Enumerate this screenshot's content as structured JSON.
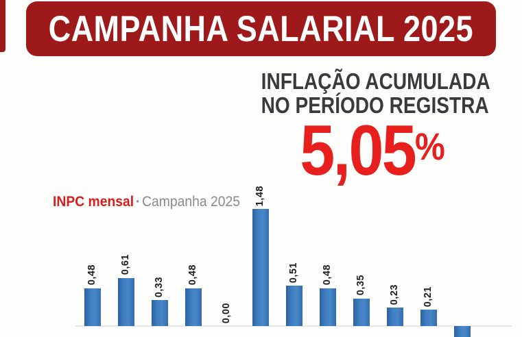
{
  "banner": {
    "title": "CAMPANHA SALARIAL 2025"
  },
  "headline": {
    "line1": "INFLAÇÃO ACUMULADA",
    "line2": "NO PERÍODO REGISTRA",
    "value": "5,05",
    "unit": "%"
  },
  "legend": {
    "series_name": "INPC mensal",
    "separator": "·",
    "period": "Campanha 2025"
  },
  "chart_data": {
    "type": "bar",
    "title": "INPC mensal · Campanha 2025",
    "series_name": "INPC mensal",
    "values": [
      0.48,
      0.61,
      0.33,
      0.48,
      0.0,
      1.48,
      0.51,
      0.48,
      0.35,
      0.23,
      0.21,
      -0.21
    ],
    "bar_labels": [
      "0,48",
      "0,61",
      "0,33",
      "0,48",
      "0,00",
      "1,48",
      "0,51",
      "0,48",
      "0,35",
      "0,23",
      "0,21",
      ""
    ],
    "x_axis_labels_visible": false,
    "last_bar_clipped_at_bottom": true,
    "ylim": [
      -0.25,
      1.6
    ],
    "grid": false,
    "legend_position": "top-left",
    "bar_color": "#3f7fc2",
    "accumulated_headline_value_pct": 5.05
  },
  "colors": {
    "banner_red": "#9e1919",
    "accent_red": "#e7201d",
    "headline_gray": "#3a3a3c",
    "legend_gray": "#8a8a8a",
    "bar_blue": "#3f7fc2",
    "axis_line": "#e7e7e5",
    "bar_label_black": "#1e1e1e"
  }
}
